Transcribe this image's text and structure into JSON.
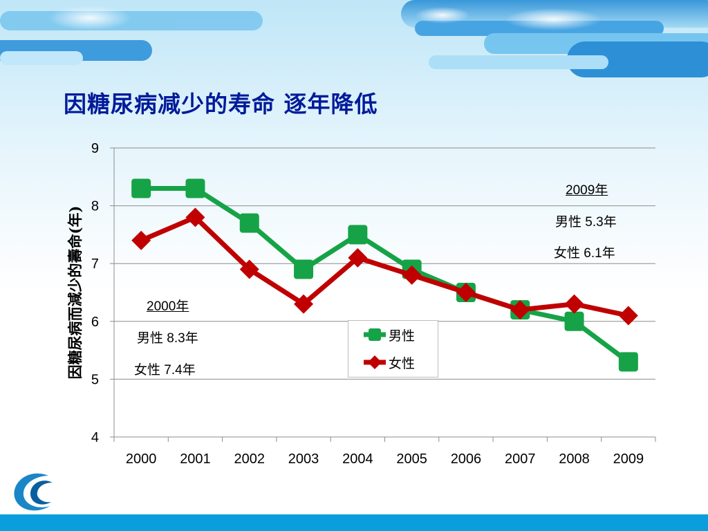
{
  "slide": {
    "title": "因糖尿病减少的寿命  逐年降低"
  },
  "chart_data": {
    "type": "line",
    "ylabel": "因糖尿病而減少的壽命(年)",
    "ylim": [
      4,
      9
    ],
    "yticks": [
      "4",
      "5",
      "6",
      "7",
      "8",
      "9"
    ],
    "categories": [
      "2000",
      "2001",
      "2002",
      "2003",
      "2004",
      "2005",
      "2006",
      "2007",
      "2008",
      "2009"
    ],
    "grid": "horizontal",
    "legend_placement": "bottom-center",
    "series": [
      {
        "name": "男性",
        "color": "#16a347",
        "marker": "square",
        "values": [
          8.3,
          8.3,
          7.7,
          6.9,
          7.5,
          6.9,
          6.5,
          6.2,
          6.0,
          5.3
        ]
      },
      {
        "name": "女性",
        "color": "#c00000",
        "marker": "diamond",
        "values": [
          7.4,
          7.8,
          6.9,
          6.3,
          7.1,
          6.8,
          6.5,
          6.2,
          6.3,
          6.1
        ]
      }
    ]
  },
  "annotations": {
    "y2000": {
      "heading": "2000年",
      "male": "男性 8.3年",
      "female": "女性 7.4年"
    },
    "y2009": {
      "heading": "2009年",
      "male": "男性 5.3年",
      "female": "女性 6.1年"
    }
  },
  "theme": {
    "title_color": "#001a99",
    "male_color": "#16a347",
    "female_color": "#c00000",
    "bottom_bar_color": "#0a9fdc"
  }
}
